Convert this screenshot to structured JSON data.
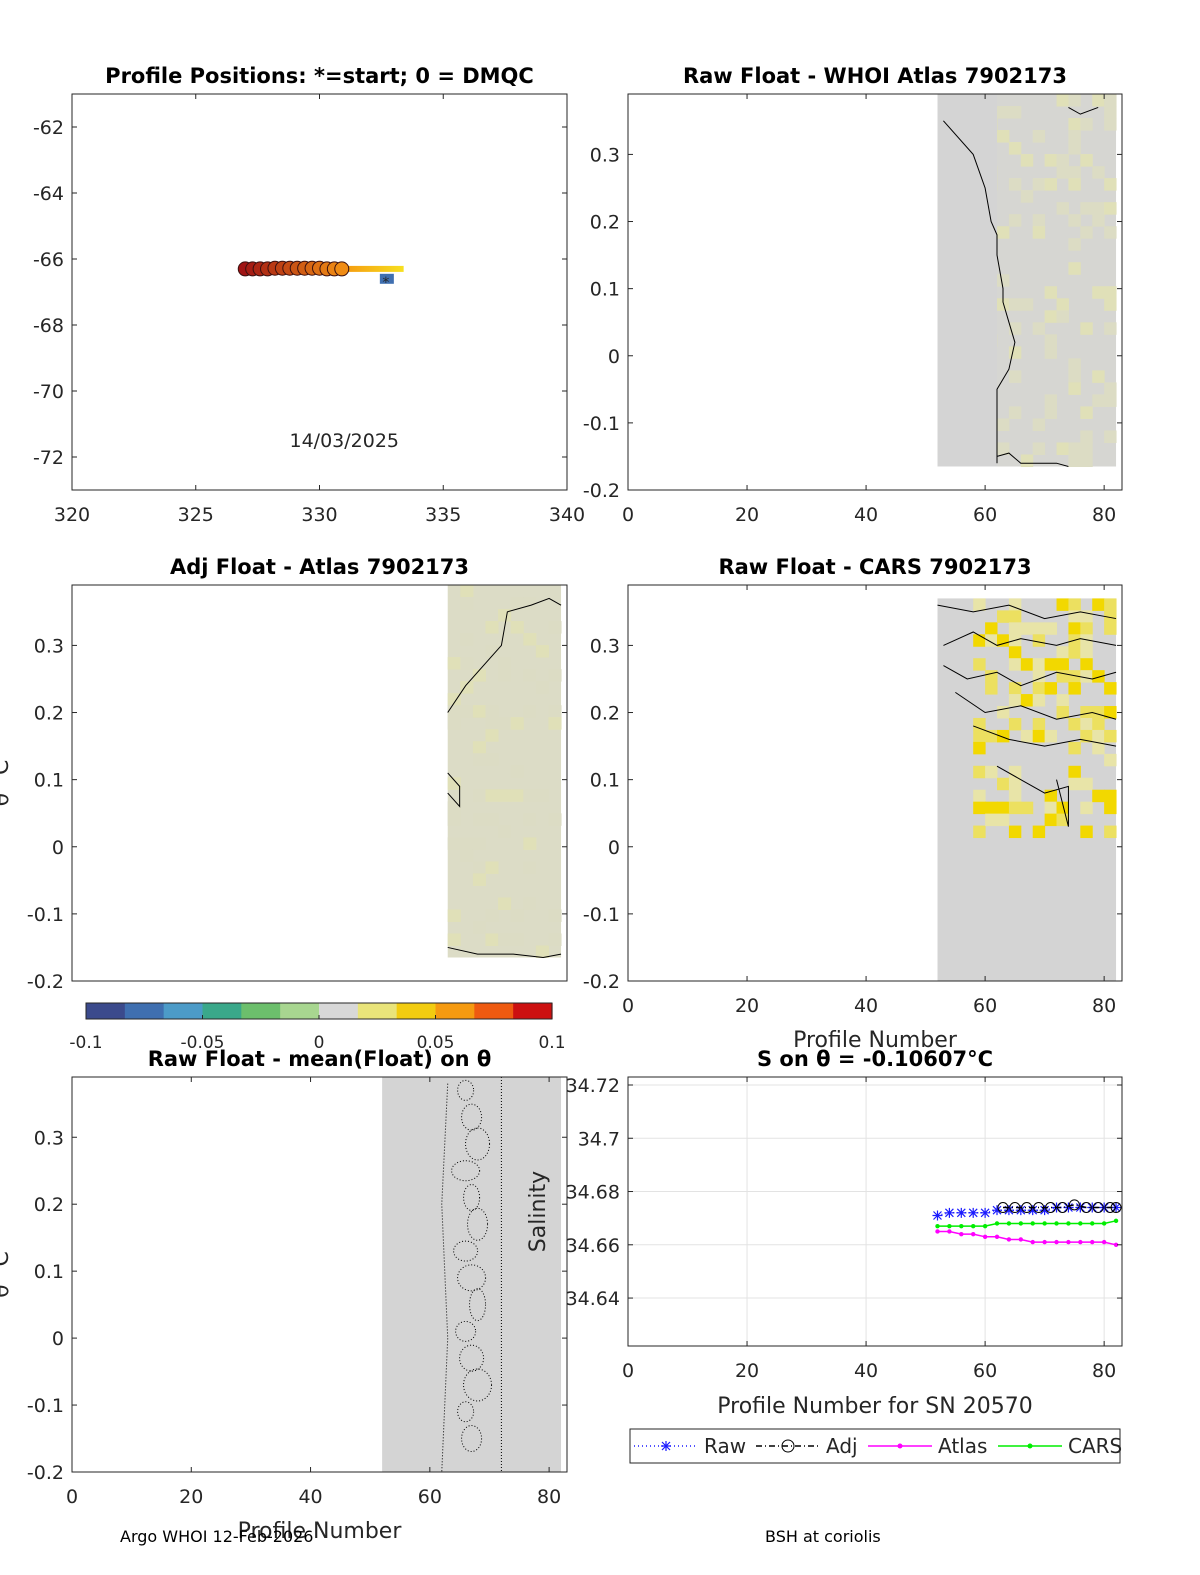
{
  "footer": {
    "left": "Argo WHOI 12-Feb-2026",
    "right": "BSH at coriolis"
  },
  "colorbar": {
    "ticks": [
      "-0.1",
      "-0.05",
      "0",
      "0.05",
      "0.1"
    ],
    "range": [
      -0.1,
      0.1
    ],
    "colors": [
      "#3b4a8c",
      "#3f6fb0",
      "#4c9bc8",
      "#3aa88a",
      "#6cbf6c",
      "#a8d690",
      "#d8d8d8",
      "#e9e47a",
      "#f2cc10",
      "#f59a10",
      "#ee5a10",
      "#cc1010"
    ]
  },
  "chart_data": [
    {
      "id": "positions",
      "type": "scatter",
      "title": "Profile Positions: *=start; 0 = DMQC",
      "xlim": [
        320,
        340
      ],
      "ylim": [
        -73,
        -61
      ],
      "xticks": [
        "320",
        "325",
        "330",
        "335",
        "340"
      ],
      "yticks": [
        "-62",
        "-64",
        "-66",
        "-68",
        "-70",
        "-72"
      ],
      "annotation": "14/03/2025",
      "track_lon": [
        327.0,
        327.3,
        327.6,
        327.9,
        328.2,
        328.5,
        328.8,
        329.1,
        329.4,
        329.7,
        330.0,
        330.3,
        330.6,
        330.9
      ],
      "track_lat": [
        -66.3,
        -66.3,
        -66.3,
        -66.3,
        -66.28,
        -66.28,
        -66.28,
        -66.28,
        -66.28,
        -66.28,
        -66.28,
        -66.3,
        -66.3,
        -66.3
      ],
      "tail_lon": [
        331.0,
        333.4
      ],
      "tail_lat": [
        -66.3,
        -66.3
      ],
      "start_lon": 332.6,
      "start_lat": -66.6
    },
    {
      "id": "whoi",
      "type": "heatmap",
      "title": "Raw Float - WHOI Atlas  7902173",
      "xlim": [
        0,
        83
      ],
      "ylim": [
        -0.2,
        0.39
      ],
      "xticks": [
        "0",
        "20",
        "40",
        "60",
        "80"
      ],
      "yticks": [
        "-0.2",
        "-0.1",
        "0",
        "0.1",
        "0.2",
        "0.3"
      ],
      "data_x": [
        52,
        82
      ],
      "data_y": [
        -0.165,
        0.39
      ],
      "contour_x": [
        53,
        58,
        60,
        61,
        62,
        62,
        63,
        63,
        64,
        65,
        64,
        62,
        62,
        62,
        62,
        62,
        64,
        66,
        68,
        72,
        74
      ],
      "contour_y": [
        0.35,
        0.3,
        0.25,
        0.2,
        0.18,
        0.15,
        0.1,
        0.08,
        0.05,
        0.02,
        -0.02,
        -0.05,
        -0.1,
        -0.14,
        -0.16,
        -0.15,
        -0.145,
        -0.16,
        -0.16,
        -0.16,
        -0.165
      ]
    },
    {
      "id": "adj_atlas",
      "type": "heatmap",
      "title": "Adj Float - Atlas  7902173",
      "xlim": [
        0,
        83
      ],
      "ylim": [
        -0.2,
        0.39
      ],
      "xticks": [],
      "yticks": [
        "-0.2",
        "-0.1",
        "0",
        "0.1",
        "0.2",
        "0.3"
      ],
      "ylabel": "θ °C",
      "data_x": [
        63,
        82
      ],
      "data_y": [
        -0.165,
        0.39
      ]
    },
    {
      "id": "cars",
      "type": "heatmap",
      "title": "Raw Float - CARS  7902173",
      "xlim": [
        0,
        83
      ],
      "ylim": [
        -0.2,
        0.39
      ],
      "xticks": [
        "0",
        "20",
        "40",
        "60",
        "80"
      ],
      "yticks": [
        "-0.2",
        "-0.1",
        "0",
        "0.1",
        "0.2",
        "0.3"
      ],
      "xlabel": "Profile Number",
      "data_x": [
        52,
        82
      ],
      "data_y": [
        -0.2,
        0.37
      ]
    },
    {
      "id": "mean",
      "type": "heatmap",
      "title": "Raw Float - mean(Float) on θ",
      "xlim": [
        0,
        83
      ],
      "ylim": [
        -0.2,
        0.39
      ],
      "xticks": [
        "0",
        "20",
        "40",
        "60",
        "80"
      ],
      "yticks": [
        "-0.2",
        "-0.1",
        "0",
        "0.1",
        "0.2",
        "0.3"
      ],
      "ylabel": "θ °C",
      "xlabel": "Profile Number",
      "data_x": [
        52,
        82
      ],
      "data_y": [
        -0.2,
        0.39
      ]
    },
    {
      "id": "salinity",
      "type": "line",
      "title": "S on θ = -0.10607°C",
      "xlim": [
        0,
        83
      ],
      "ylim": [
        34.622,
        34.723
      ],
      "xticks": [
        "0",
        "20",
        "40",
        "60",
        "80"
      ],
      "yticks": [
        "34.64",
        "34.66",
        "34.68",
        "34.7",
        "34.72"
      ],
      "xlabel": "Profile Number for SN 20570",
      "ylabel": "Salinity",
      "legend": [
        "Raw",
        "Adj",
        "Atlas",
        "CARS"
      ],
      "series": [
        {
          "name": "Raw",
          "x": [
            52,
            54,
            56,
            58,
            60,
            62,
            64,
            66,
            68,
            70,
            72,
            74,
            76,
            78,
            80,
            82
          ],
          "y": [
            34.671,
            34.672,
            34.672,
            34.672,
            34.672,
            34.673,
            34.673,
            34.673,
            34.673,
            34.673,
            34.674,
            34.674,
            34.674,
            34.674,
            34.674,
            34.674
          ]
        },
        {
          "name": "Adj",
          "x": [
            63,
            65,
            67,
            69,
            71,
            73,
            75,
            77,
            79,
            81,
            82
          ],
          "y": [
            34.674,
            34.674,
            34.674,
            34.674,
            34.674,
            34.674,
            34.675,
            34.674,
            34.674,
            34.674,
            34.674
          ]
        },
        {
          "name": "Atlas",
          "x": [
            52,
            54,
            56,
            58,
            60,
            62,
            64,
            66,
            68,
            70,
            72,
            74,
            76,
            78,
            80,
            82
          ],
          "y": [
            34.665,
            34.665,
            34.664,
            34.664,
            34.663,
            34.663,
            34.662,
            34.662,
            34.661,
            34.661,
            34.661,
            34.661,
            34.661,
            34.661,
            34.661,
            34.66
          ]
        },
        {
          "name": "CARS",
          "x": [
            52,
            54,
            56,
            58,
            60,
            62,
            64,
            66,
            68,
            70,
            72,
            74,
            76,
            78,
            80,
            82
          ],
          "y": [
            34.667,
            34.667,
            34.667,
            34.667,
            34.667,
            34.668,
            34.668,
            34.668,
            34.668,
            34.668,
            34.668,
            34.668,
            34.668,
            34.668,
            34.668,
            34.669
          ]
        }
      ]
    }
  ]
}
